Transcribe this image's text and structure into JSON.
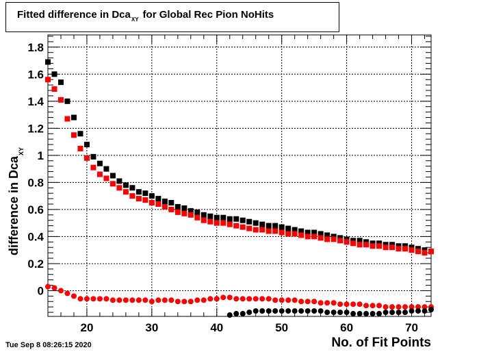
{
  "title": {
    "main": "Fitted difference in Dca",
    "sub": "XY",
    "rest": "for Global Rec Pion NoHits"
  },
  "axes": {
    "ylabel_main": "difference in Dca",
    "ylabel_sub": "XY",
    "xlabel": "No. of Fit Points"
  },
  "datestamp": "Tue Sep  8 08:26:15 2020",
  "chart_data": {
    "type": "scatter",
    "xlim": [
      14,
      73
    ],
    "ylim": [
      -0.19,
      1.89
    ],
    "x_ticks": [
      20,
      30,
      40,
      50,
      60,
      70
    ],
    "y_ticks": [
      0,
      0.2,
      0.4,
      0.6,
      0.8,
      1,
      1.2,
      1.4,
      1.6,
      1.8
    ],
    "y_tick_labels": [
      "0",
      "0.2",
      "0.4",
      "0.6",
      "0.8",
      "1",
      "1.2",
      "1.4",
      "1.6",
      "1.8"
    ],
    "grid": true,
    "series": [
      {
        "marker": "square",
        "color": "#000000",
        "x": [
          14,
          15,
          16,
          17,
          18,
          19,
          20,
          21,
          22,
          23,
          24,
          25,
          26,
          27,
          28,
          29,
          30,
          31,
          32,
          33,
          34,
          35,
          36,
          37,
          38,
          39,
          40,
          41,
          42,
          43,
          44,
          45,
          46,
          47,
          48,
          49,
          50,
          51,
          52,
          53,
          54,
          55,
          56,
          57,
          58,
          59,
          60,
          61,
          62,
          63,
          64,
          65,
          66,
          67,
          68,
          69,
          70,
          71,
          72,
          73
        ],
        "y": [
          1.69,
          1.6,
          1.54,
          1.4,
          1.28,
          1.16,
          1.08,
          0.99,
          0.94,
          0.9,
          0.85,
          0.81,
          0.78,
          0.76,
          0.73,
          0.72,
          0.7,
          0.68,
          0.66,
          0.65,
          0.62,
          0.61,
          0.59,
          0.58,
          0.56,
          0.55,
          0.54,
          0.54,
          0.53,
          0.53,
          0.52,
          0.51,
          0.5,
          0.49,
          0.48,
          0.48,
          0.47,
          0.46,
          0.45,
          0.44,
          0.43,
          0.43,
          0.42,
          0.41,
          0.4,
          0.39,
          0.38,
          0.37,
          0.37,
          0.36,
          0.35,
          0.35,
          0.34,
          0.34,
          0.33,
          0.33,
          0.32,
          0.31,
          0.3,
          0.29
        ]
      },
      {
        "marker": "square",
        "color": "#ff0000",
        "x": [
          14,
          15,
          16,
          17,
          18,
          19,
          20,
          21,
          22,
          23,
          24,
          25,
          26,
          27,
          28,
          29,
          30,
          31,
          32,
          33,
          34,
          35,
          36,
          37,
          38,
          39,
          40,
          41,
          42,
          43,
          44,
          45,
          46,
          47,
          48,
          49,
          50,
          51,
          52,
          53,
          54,
          55,
          56,
          57,
          58,
          59,
          60,
          61,
          62,
          63,
          64,
          65,
          66,
          67,
          68,
          69,
          70,
          71,
          72,
          73
        ],
        "y": [
          1.56,
          1.49,
          1.41,
          1.27,
          1.15,
          1.05,
          0.98,
          0.91,
          0.86,
          0.83,
          0.79,
          0.76,
          0.73,
          0.7,
          0.68,
          0.67,
          0.65,
          0.64,
          0.62,
          0.6,
          0.58,
          0.57,
          0.56,
          0.54,
          0.52,
          0.51,
          0.5,
          0.5,
          0.49,
          0.48,
          0.47,
          0.46,
          0.45,
          0.45,
          0.44,
          0.44,
          0.43,
          0.42,
          0.42,
          0.41,
          0.4,
          0.4,
          0.39,
          0.38,
          0.38,
          0.37,
          0.36,
          0.35,
          0.34,
          0.34,
          0.33,
          0.33,
          0.32,
          0.32,
          0.31,
          0.31,
          0.3,
          0.29,
          0.28,
          0.29
        ]
      },
      {
        "marker": "circle",
        "color": "#ff0000",
        "x": [
          14,
          15,
          16,
          17,
          18,
          19,
          20,
          21,
          22,
          23,
          24,
          25,
          26,
          27,
          28,
          29,
          30,
          31,
          32,
          33,
          34,
          35,
          36,
          37,
          38,
          39,
          40,
          41,
          42,
          43,
          44,
          45,
          46,
          47,
          48,
          49,
          50,
          51,
          52,
          53,
          54,
          55,
          56,
          57,
          58,
          59,
          60,
          61,
          62,
          63,
          64,
          65,
          66,
          67,
          68,
          69,
          70,
          71,
          72,
          73
        ],
        "y": [
          0.03,
          0.02,
          0.0,
          -0.02,
          -0.04,
          -0.06,
          -0.06,
          -0.06,
          -0.06,
          -0.06,
          -0.07,
          -0.07,
          -0.07,
          -0.07,
          -0.07,
          -0.07,
          -0.08,
          -0.07,
          -0.07,
          -0.07,
          -0.08,
          -0.08,
          -0.08,
          -0.07,
          -0.07,
          -0.06,
          -0.06,
          -0.05,
          -0.05,
          -0.06,
          -0.06,
          -0.06,
          -0.06,
          -0.06,
          -0.06,
          -0.07,
          -0.07,
          -0.07,
          -0.07,
          -0.08,
          -0.08,
          -0.08,
          -0.09,
          -0.09,
          -0.09,
          -0.1,
          -0.1,
          -0.1,
          -0.1,
          -0.11,
          -0.11,
          -0.11,
          -0.12,
          -0.12,
          -0.12,
          -0.12,
          -0.12,
          -0.12,
          -0.12,
          -0.12
        ]
      },
      {
        "marker": "circle",
        "color": "#000000",
        "x": [
          42,
          43,
          44,
          45,
          46,
          47,
          48,
          49,
          50,
          51,
          52,
          53,
          54,
          55,
          56,
          57,
          58,
          59,
          60,
          61,
          62,
          63,
          64,
          65,
          66,
          67,
          68,
          69,
          70,
          71,
          72,
          73
        ],
        "y": [
          -0.18,
          -0.17,
          -0.17,
          -0.16,
          -0.15,
          -0.15,
          -0.15,
          -0.15,
          -0.15,
          -0.15,
          -0.15,
          -0.15,
          -0.15,
          -0.15,
          -0.15,
          -0.16,
          -0.16,
          -0.16,
          -0.16,
          -0.17,
          -0.17,
          -0.17,
          -0.17,
          -0.17,
          -0.16,
          -0.16,
          -0.16,
          -0.16,
          -0.15,
          -0.15,
          -0.15,
          -0.14
        ]
      }
    ]
  }
}
